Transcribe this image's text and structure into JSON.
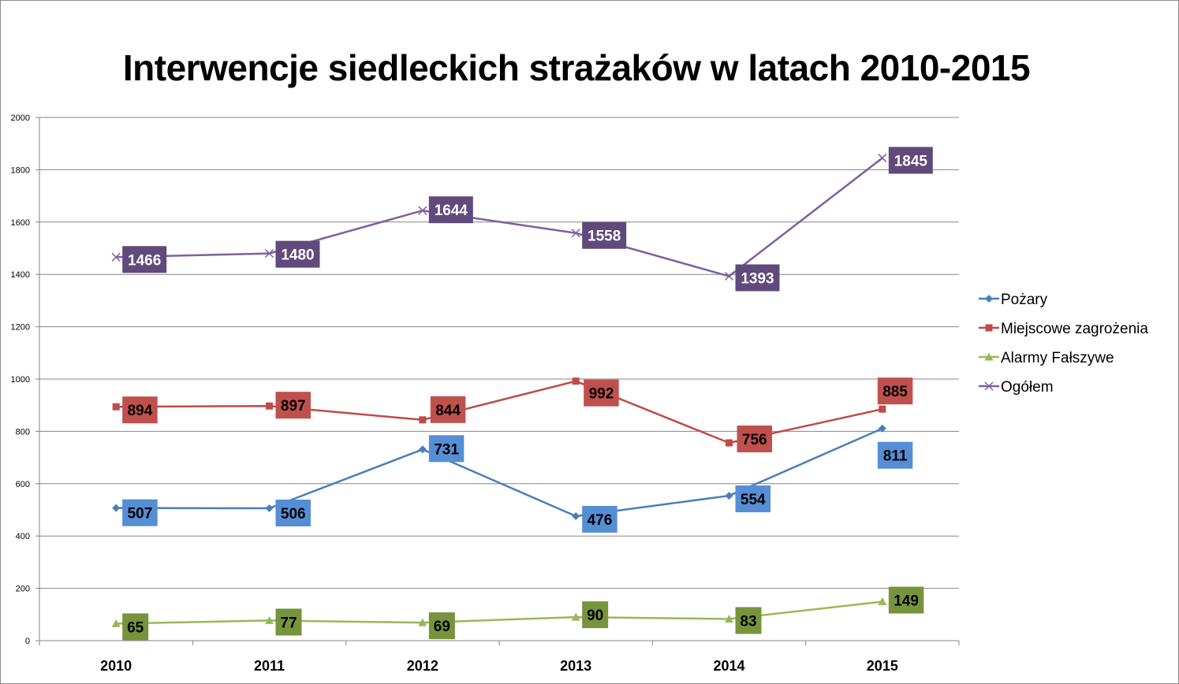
{
  "chart_data": {
    "type": "line",
    "title": "Interwencje siedleckich strażaków w latach 2010-2015",
    "xlabel": "",
    "ylabel": "",
    "categories": [
      "2010",
      "2011",
      "2012",
      "2013",
      "2014",
      "2015"
    ],
    "ylim": [
      0,
      2000
    ],
    "yticks": [
      "0",
      "200",
      "400",
      "600",
      "800",
      "1000",
      "1200",
      "1400",
      "1600",
      "1800",
      "2000"
    ],
    "grid": true,
    "legend_position": "right",
    "series": [
      {
        "name": "Pożary",
        "values": [
          507,
          506,
          731,
          476,
          554,
          811
        ],
        "color": "#4a7ebb",
        "label_bg": "#558ed5",
        "label_text": "#000000",
        "marker": "diamond"
      },
      {
        "name": "Miejscowe zagrożenia",
        "values": [
          894,
          897,
          844,
          992,
          756,
          885
        ],
        "color": "#be4b48",
        "label_bg": "#c0504d",
        "label_text": "#000000",
        "marker": "square"
      },
      {
        "name": "Alarmy  Fałszywe",
        "values": [
          65,
          77,
          69,
          90,
          83,
          149
        ],
        "color": "#98b954",
        "label_bg": "#77933c",
        "label_text": "#000000",
        "marker": "triangle"
      },
      {
        "name": "Ogółem",
        "values": [
          1466,
          1480,
          1644,
          1558,
          1393,
          1845
        ],
        "color": "#7d60a0",
        "label_bg": "#604a7b",
        "label_text": "#ffffff",
        "marker": "cross"
      }
    ]
  }
}
